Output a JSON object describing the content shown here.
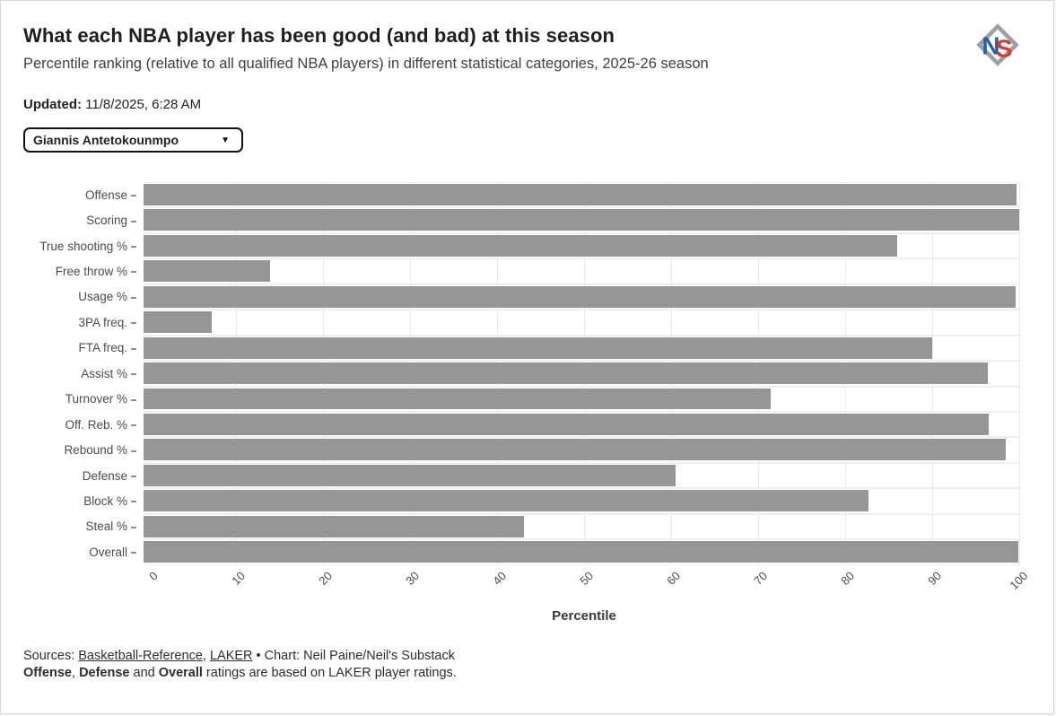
{
  "header": {
    "title": "What each NBA player has been good (and bad) at this season",
    "subtitle": "Percentile ranking (relative to all qualified NBA players) in different statistical categories, 2025-26 season",
    "updated_label": "Updated:",
    "updated_value": " 11/8/2025, 6:28 AM",
    "logo": {
      "letter_n": "N",
      "letter_s": "S",
      "n_color": "#2a5ca8",
      "s_color": "#d93a2b",
      "diamond_color": "#9ba1a6"
    }
  },
  "player_select": {
    "selected": "Giannis Antetokounmpo",
    "caret": "▼"
  },
  "chart_data": {
    "type": "bar",
    "orientation": "horizontal",
    "title": "What each NBA player has been good (and bad) at this season",
    "categories": [
      "Offense",
      "Scoring",
      "True shooting %",
      "Free throw %",
      "Usage %",
      "3PA freq.",
      "FTA freq.",
      "Assist %",
      "Turnover %",
      "Off. Reb. %",
      "Rebound %",
      "Defense",
      "Block %",
      "Steal %",
      "Overall"
    ],
    "values": [
      99.7,
      100,
      86.1,
      14.4,
      99.6,
      7.8,
      90.1,
      96.4,
      71.6,
      96.5,
      98.5,
      60.8,
      82.8,
      43.4,
      99.9
    ],
    "xlabel": "Percentile",
    "ylabel": "",
    "xlim": [
      0,
      100
    ],
    "xticks": [
      0,
      10,
      20,
      30,
      40,
      50,
      60,
      70,
      80,
      90,
      100
    ],
    "grid": true,
    "legend": false,
    "bar_color": "#969696"
  },
  "footer": {
    "sources_prefix": "Sources: ",
    "source_link_1": "Basketball-Reference",
    "sources_sep": ", ",
    "source_link_2": "LAKER",
    "sources_rest": " • Chart: Neil Paine/Neil's Substack",
    "note_bold_1": "Offense",
    "note_sep_1": ", ",
    "note_bold_2": "Defense",
    "note_mid": " and ",
    "note_bold_3": "Overall",
    "note_rest": " ratings are based on LAKER player ratings."
  }
}
